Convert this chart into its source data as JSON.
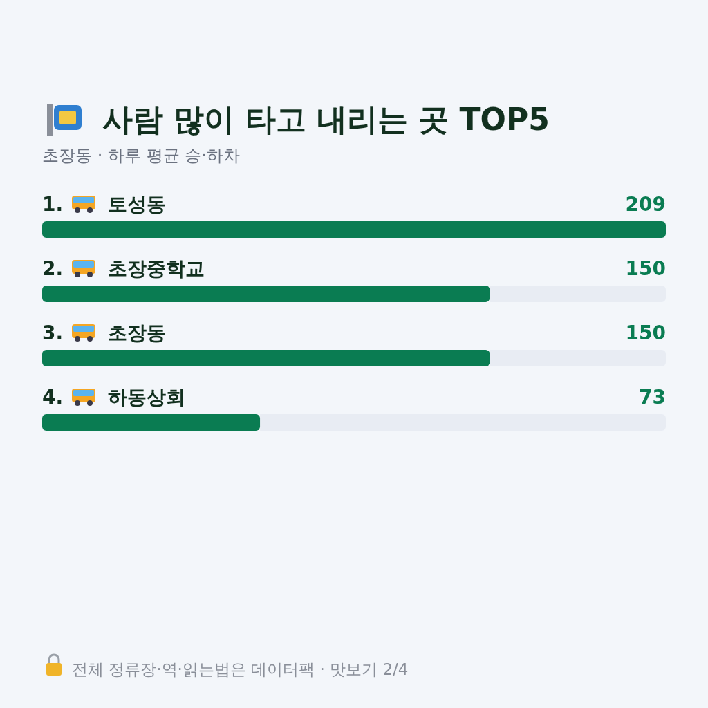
{
  "chart_data": {
    "type": "bar",
    "orientation": "horizontal",
    "title": "사람 많이 타고 내리는 곳 TOP5",
    "subtitle": "초장동 · 하루 평균 승·하차",
    "categories": [
      "1. 토성동",
      "2. 초장중학교",
      "3. 초장동",
      "4. 하동상회"
    ],
    "values": [
      209,
      150,
      150,
      73
    ],
    "color": "#0a7c52",
    "data_labels": true,
    "relative": false,
    "annotations": [
      "전체 정류장·역·읽는법은 데이터팩 · 맛보기 2/4"
    ]
  }
}
